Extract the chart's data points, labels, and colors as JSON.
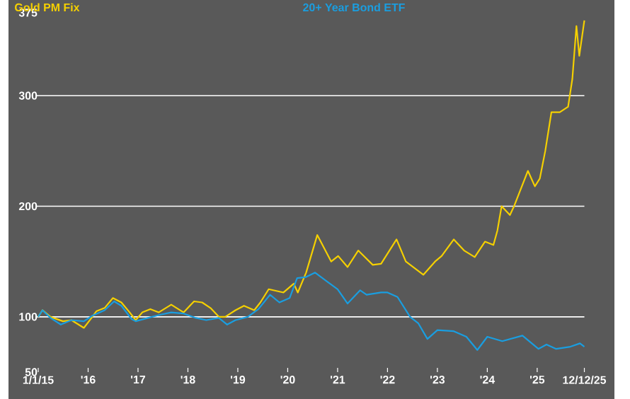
{
  "chart_data": {
    "type": "line",
    "legend": "top",
    "xlim": [
      "2015-01-01",
      "2026-07-20"
    ],
    "ylim": [
      50,
      375
    ],
    "xticks": [
      {
        "value": "2015-01-01",
        "label": "1/1/15"
      },
      {
        "value": "2016-01-01",
        "label": "'16"
      },
      {
        "value": "2017-01-01",
        "label": "'17"
      },
      {
        "value": "2018-01-01",
        "label": "'18"
      },
      {
        "value": "2019-01-01",
        "label": "'19"
      },
      {
        "value": "2020-01-01",
        "label": "'20"
      },
      {
        "value": "2021-01-01",
        "label": "'21"
      },
      {
        "value": "2022-01-01",
        "label": "'22"
      },
      {
        "value": "2023-01-01",
        "label": "'23"
      },
      {
        "value": "2024-01-01",
        "label": "'24"
      },
      {
        "value": "2025-01-01",
        "label": "'25"
      },
      {
        "value": "2025-12-12",
        "label": "12/12/25"
      }
    ],
    "yticks": [
      50,
      100,
      200,
      300,
      375
    ],
    "ref_lines": [
      {
        "axis": "y",
        "value": 100,
        "color": "#ffffff"
      },
      {
        "axis": "y",
        "value": 200,
        "color": "#ffffff"
      },
      {
        "axis": "y",
        "value": 300,
        "color": "#ffffff"
      }
    ],
    "series": [
      {
        "name": "Gold PM Fix",
        "color": "#f5d000",
        "x": [
          "2015-01-01",
          "2015-02-01",
          "2015-04-01",
          "2015-07-01",
          "2015-09-01",
          "2015-12-01",
          "2016-02-01",
          "2016-03-01",
          "2016-05-01",
          "2016-07-01",
          "2016-09-01",
          "2016-11-01",
          "2016-12-15",
          "2017-02-01",
          "2017-04-01",
          "2017-06-01",
          "2017-09-01",
          "2017-12-01",
          "2018-01-15",
          "2018-02-15",
          "2018-04-15",
          "2018-06-15",
          "2018-08-15",
          "2018-10-01",
          "2018-12-15",
          "2019-02-15",
          "2019-05-01",
          "2019-06-15",
          "2019-08-15",
          "2019-12-01",
          "2020-02-15",
          "2020-03-15",
          "2020-05-15",
          "2020-08-05",
          "2020-11-15",
          "2021-01-05",
          "2021-03-15",
          "2021-06-01",
          "2021-09-15",
          "2021-11-15",
          "2022-03-08",
          "2022-05-15",
          "2022-09-20",
          "2022-12-15",
          "2023-02-01",
          "2023-05-01",
          "2023-07-15",
          "2023-10-01",
          "2023-12-15",
          "2024-02-15",
          "2024-03-15",
          "2024-04-15",
          "2024-06-15",
          "2024-07-15",
          "2024-10-25",
          "2024-12-15",
          "2025-01-20",
          "2025-03-01",
          "2025-04-15",
          "2025-06-15",
          "2025-08-15",
          "2025-09-15",
          "2025-10-15",
          "2025-11-05",
          "2025-12-12"
        ],
        "values": [
          100,
          106,
          100,
          96,
          97,
          90,
          100,
          105,
          108,
          117,
          113,
          104,
          97,
          104,
          107,
          104,
          111,
          104,
          110,
          114,
          113,
          108,
          100,
          100,
          106,
          110,
          106,
          113,
          125,
          122,
          130,
          122,
          140,
          174,
          150,
          155,
          145,
          160,
          147,
          148,
          170,
          150,
          138,
          150,
          155,
          170,
          160,
          154,
          168,
          165,
          178,
          200,
          192,
          200,
          232,
          218,
          225,
          250,
          285,
          285,
          290,
          315,
          363,
          336,
          368
        ]
      },
      {
        "name": "20+ Year Bond ETF",
        "color": "#1a9ee0",
        "x": [
          "2015-01-01",
          "2015-02-01",
          "2015-04-01",
          "2015-06-15",
          "2015-09-01",
          "2015-12-01",
          "2016-02-01",
          "2016-05-01",
          "2016-07-10",
          "2016-09-01",
          "2016-11-15",
          "2016-12-15",
          "2017-03-15",
          "2017-06-15",
          "2017-09-01",
          "2017-12-01",
          "2018-03-01",
          "2018-05-15",
          "2018-08-15",
          "2018-10-15",
          "2018-12-15",
          "2019-03-15",
          "2019-06-01",
          "2019-08-25",
          "2019-11-01",
          "2020-01-15",
          "2020-03-10",
          "2020-05-15",
          "2020-07-20",
          "2020-10-15",
          "2021-01-01",
          "2021-03-15",
          "2021-06-15",
          "2021-08-01",
          "2021-11-15",
          "2022-01-01",
          "2022-03-15",
          "2022-06-15",
          "2022-08-15",
          "2022-10-20",
          "2023-01-01",
          "2023-05-01",
          "2023-08-01",
          "2023-10-20",
          "2024-01-01",
          "2024-04-20",
          "2024-09-15",
          "2025-01-10",
          "2025-03-10",
          "2025-05-20",
          "2025-09-01",
          "2025-11-10",
          "2025-12-12"
        ],
        "values": [
          100,
          106,
          99,
          93,
          97,
          96,
          101,
          106,
          114,
          110,
          98,
          96,
          99,
          102,
          104,
          103,
          99,
          97,
          99,
          93,
          97,
          100,
          107,
          120,
          113,
          117,
          135,
          136,
          140,
          132,
          125,
          112,
          124,
          120,
          122,
          122,
          118,
          100,
          94,
          80,
          88,
          87,
          82,
          70,
          82,
          78,
          83,
          71,
          75,
          71,
          73,
          76,
          73
        ]
      }
    ]
  }
}
